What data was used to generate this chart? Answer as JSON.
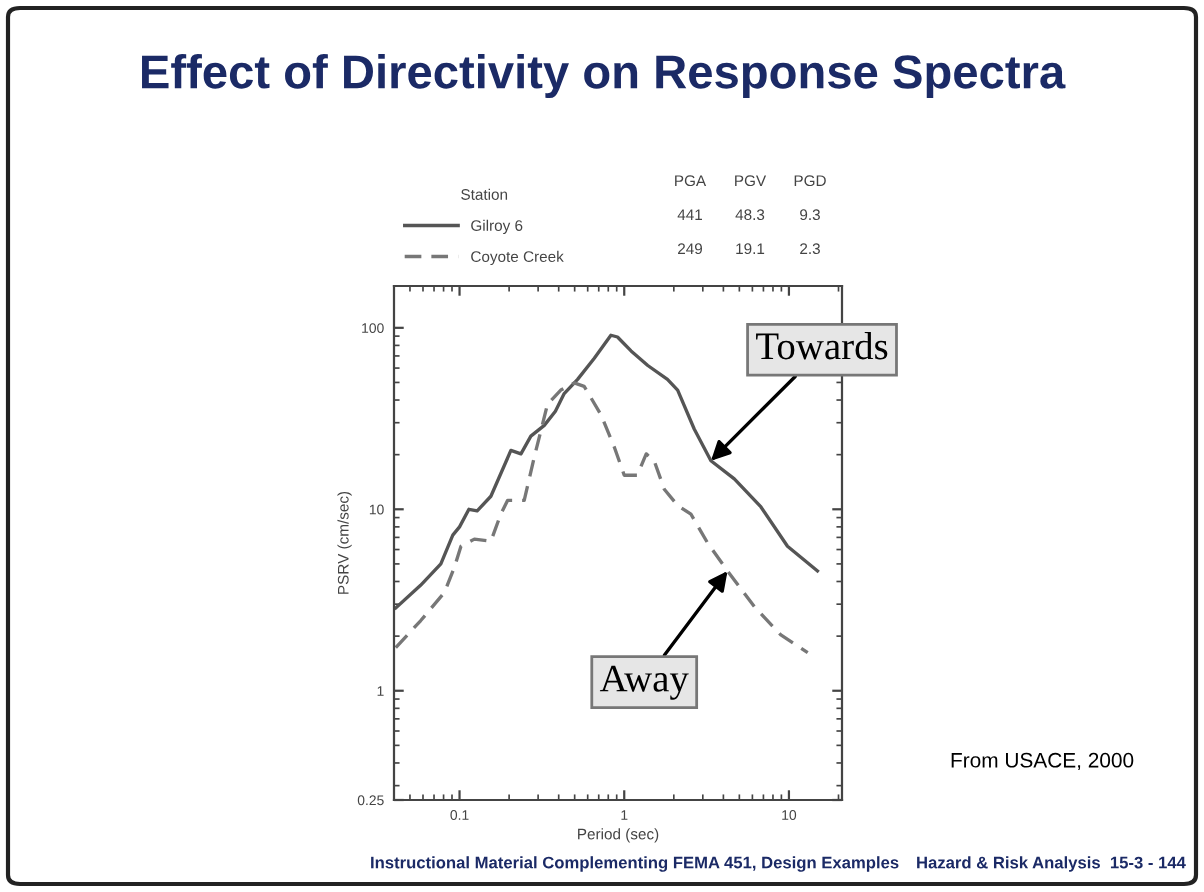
{
  "chart_data": {
    "type": "line",
    "title": "Effect of Directivity on Response Spectra",
    "xlabel": "Period (sec)",
    "ylabel": "PSRV (cm/sec)",
    "legend_title": "Station",
    "legend": "top",
    "log": "xy",
    "grid": false,
    "marker": "none",
    "xlim": [
      0.04,
      21
    ],
    "xticks": [
      0.1,
      1,
      10
    ],
    "ylim": [
      0.25,
      170
    ],
    "yticks": [
      0.25,
      1,
      10,
      100
    ],
    "series": [
      {
        "name": "Gilroy 6",
        "color": "#555555",
        "line_style": "solid",
        "x": [
          0.041,
          0.058,
          0.077,
          0.091,
          0.1,
          0.114,
          0.128,
          0.155,
          0.205,
          0.236,
          0.271,
          0.327,
          0.382,
          0.432,
          0.521,
          0.658,
          0.83,
          0.91,
          1.1,
          1.39,
          1.83,
          2.11,
          2.66,
          3.36,
          4.66,
          6.76,
          9.8,
          14.9
        ],
        "values": [
          2.86,
          3.81,
          5.0,
          7.2,
          8.0,
          10.0,
          9.8,
          11.8,
          21.1,
          20.2,
          25.3,
          29.0,
          34.7,
          43.4,
          52,
          68,
          91,
          89,
          74.6,
          62,
          52,
          45.4,
          27.7,
          18.5,
          14.7,
          10.3,
          6.26,
          4.57
        ]
      },
      {
        "name": "Coyote Creek",
        "color": "#777777",
        "line_style": "dashed",
        "x": [
          0.041,
          0.058,
          0.081,
          0.093,
          0.102,
          0.123,
          0.155,
          0.178,
          0.196,
          0.247,
          0.284,
          0.342,
          0.412,
          0.497,
          0.571,
          0.722,
          0.869,
          1.0,
          1.2,
          1.36,
          1.52,
          1.75,
          2.11,
          2.54,
          3.2,
          4.24,
          6.16,
          8.93,
          13.0
        ],
        "values": [
          1.73,
          2.43,
          3.48,
          4.78,
          6.26,
          6.85,
          6.66,
          9.4,
          11.2,
          11.2,
          19.3,
          37.9,
          45.4,
          49.7,
          47.6,
          33.2,
          22.1,
          15.4,
          15.4,
          20.2,
          18.5,
          12.9,
          10.5,
          9.4,
          6.55,
          4.57,
          2.91,
          2.03,
          1.62
        ]
      }
    ],
    "annotations": [
      {
        "text": "Towards",
        "x": 3.36,
        "y": 18.5
      },
      {
        "text": "Away",
        "x": 4.24,
        "y": 4.57
      },
      "PGA",
      "PGV",
      "PGD",
      "441",
      "48.3",
      "9.3",
      "249",
      "19.1",
      "2.3",
      "From USACE, 2000",
      "Instructional Material Complementing FEMA 451, Design Examples",
      "Hazard & Risk Analysis  15-3 - 144"
    ]
  }
}
